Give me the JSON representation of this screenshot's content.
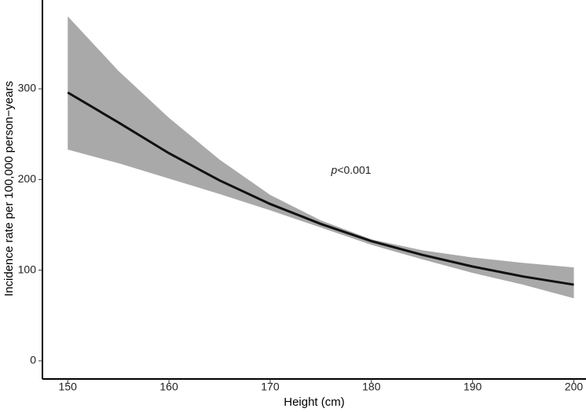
{
  "chart_data": {
    "type": "line",
    "x": [
      150,
      155,
      160,
      165,
      170,
      175,
      180,
      185,
      190,
      195,
      200
    ],
    "values": [
      296,
      263,
      229,
      199,
      173,
      151,
      132,
      117,
      104,
      93,
      84
    ],
    "upper": [
      380,
      320,
      268,
      222,
      183,
      155,
      134,
      122,
      114,
      108,
      103
    ],
    "lower": [
      233,
      218,
      201,
      184,
      166,
      147,
      128,
      112,
      97,
      84,
      69
    ],
    "color": "#111111",
    "band_color": "#a9a9a9",
    "xlabel": "Height (cm)",
    "ylabel": "Incidence rate per 100,000 person−years",
    "annotation": {
      "italic": "p",
      "text": "<0.001",
      "x": 178,
      "y": 210
    },
    "xlim": [
      147.5,
      201.2
    ],
    "ylim": [
      -20,
      398
    ],
    "xticks": [
      150,
      160,
      170,
      180,
      190,
      200
    ],
    "yticks": [
      0,
      100,
      200,
      300
    ],
    "grid": false
  }
}
